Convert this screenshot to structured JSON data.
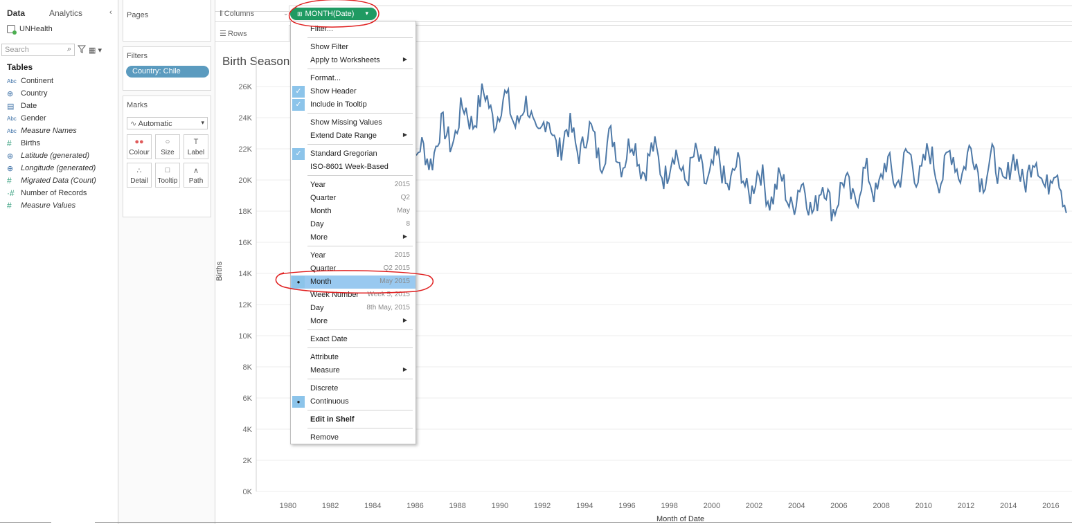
{
  "data_pane": {
    "tab_data": "Data",
    "tab_analytics": "Analytics",
    "datasource": "UNHealth",
    "search_placeholder": "Search",
    "tables_title": "Tables",
    "fields": [
      {
        "type": "Abc",
        "name": "Continent",
        "italic": false
      },
      {
        "type": "globe",
        "name": "Country",
        "italic": false
      },
      {
        "type": "date",
        "name": "Date",
        "italic": false
      },
      {
        "type": "Abc",
        "name": "Gender",
        "italic": false
      },
      {
        "type": "Abc",
        "name": "Measure Names",
        "italic": true
      },
      {
        "type": "#",
        "name": "Births",
        "italic": false
      },
      {
        "type": "globe",
        "name": "Latitude (generated)",
        "italic": true
      },
      {
        "type": "globe",
        "name": "Longitude (generated)",
        "italic": true
      },
      {
        "type": "#",
        "name": "Migrated Data (Count)",
        "italic": true
      },
      {
        "type": "=#",
        "name": "Number of Records",
        "italic": false
      },
      {
        "type": "#",
        "name": "Measure Values",
        "italic": true
      }
    ]
  },
  "cards": {
    "pages_title": "Pages",
    "filters_title": "Filters",
    "filter_pill": "Country: Chile",
    "marks_title": "Marks",
    "mark_type": "Automatic",
    "mark_buttons": [
      {
        "label": "Colour",
        "icon": "colour-icon"
      },
      {
        "label": "Size",
        "icon": "size-icon"
      },
      {
        "label": "Label",
        "icon": "label-icon"
      },
      {
        "label": "Detail",
        "icon": "detail-icon"
      },
      {
        "label": "Tooltip",
        "icon": "tooltip-icon"
      },
      {
        "label": "Path",
        "icon": "path-icon"
      }
    ]
  },
  "shelves": {
    "columns_label": "Columns",
    "rows_label": "Rows",
    "columns_pill": "MONTH(Date)"
  },
  "viz": {
    "title": "Birth Season",
    "ylabel": "Births",
    "xlabel": "Month of Date"
  },
  "context_menu": {
    "items": [
      {
        "label": "Filter...",
        "value": "",
        "check": "",
        "submenu": false,
        "bold": false,
        "highlight": false
      },
      {
        "sep": true
      },
      {
        "label": "Show Filter",
        "value": "",
        "check": "",
        "submenu": false
      },
      {
        "label": "Apply to Worksheets",
        "value": "",
        "check": "",
        "submenu": true
      },
      {
        "sep": true
      },
      {
        "label": "Format...",
        "value": "",
        "check": "",
        "submenu": false
      },
      {
        "label": "Show Header",
        "value": "",
        "check": "tick",
        "submenu": false
      },
      {
        "label": "Include in Tooltip",
        "value": "",
        "check": "tick",
        "submenu": false
      },
      {
        "sep": true
      },
      {
        "label": "Show Missing Values",
        "value": "",
        "check": "",
        "submenu": false
      },
      {
        "label": "Extend Date Range",
        "value": "",
        "check": "",
        "submenu": true
      },
      {
        "sep": true
      },
      {
        "label": "Standard Gregorian",
        "value": "",
        "check": "tick",
        "submenu": false
      },
      {
        "label": "ISO-8601 Week-Based",
        "value": "",
        "check": "",
        "submenu": false
      },
      {
        "sep": true
      },
      {
        "label": "Year",
        "value": "2015",
        "check": "",
        "submenu": false
      },
      {
        "label": "Quarter",
        "value": "Q2",
        "check": "",
        "submenu": false
      },
      {
        "label": "Month",
        "value": "May",
        "check": "",
        "submenu": false
      },
      {
        "label": "Day",
        "value": "8",
        "check": "",
        "submenu": false
      },
      {
        "label": "More",
        "value": "",
        "check": "",
        "submenu": true
      },
      {
        "sep": true
      },
      {
        "label": "Year",
        "value": "2015",
        "check": "",
        "submenu": false
      },
      {
        "label": "Quarter",
        "value": "Q2 2015",
        "check": "",
        "submenu": false
      },
      {
        "label": "Month",
        "value": "May 2015",
        "check": "dot",
        "submenu": false,
        "highlight": true
      },
      {
        "label": "Week Number",
        "value": "Week 5, 2015",
        "check": "",
        "submenu": false
      },
      {
        "label": "Day",
        "value": "8th May, 2015",
        "check": "",
        "submenu": false
      },
      {
        "label": "More",
        "value": "",
        "check": "",
        "submenu": true
      },
      {
        "sep": true
      },
      {
        "label": "Exact Date",
        "value": "",
        "check": "",
        "submenu": false
      },
      {
        "sep": true
      },
      {
        "label": "Attribute",
        "value": "",
        "check": "",
        "submenu": false
      },
      {
        "label": "Measure",
        "value": "",
        "check": "",
        "submenu": true
      },
      {
        "sep": true
      },
      {
        "label": "Discrete",
        "value": "",
        "check": "",
        "submenu": false
      },
      {
        "label": "Continuous",
        "value": "",
        "check": "dot",
        "submenu": false
      },
      {
        "sep": true
      },
      {
        "label": "Edit in Shelf",
        "value": "",
        "check": "",
        "submenu": false,
        "bold": true
      },
      {
        "sep": true
      },
      {
        "label": "Remove",
        "value": "",
        "check": "",
        "submenu": false
      }
    ]
  },
  "colors": {
    "line": "#4e79a7",
    "pill_green": "#1f9a62",
    "pill_blue": "#5b9bbf",
    "annotation_red": "#e02020",
    "menu_highlight": "#99c9f0"
  },
  "chart_data": {
    "type": "line",
    "title": "",
    "xlabel": "Month of Date",
    "ylabel": "Births",
    "x_ticks": [
      "1980",
      "1982",
      "1984",
      "1986",
      "1988",
      "1990",
      "1992",
      "1994",
      "1996",
      "1998",
      "2000",
      "2002",
      "2004",
      "2006",
      "2008",
      "2010",
      "2012",
      "2014",
      "2016"
    ],
    "y_ticks": [
      "0K",
      "2K",
      "4K",
      "6K",
      "8K",
      "10K",
      "12K",
      "14K",
      "16K",
      "18K",
      "20K",
      "22K",
      "24K",
      "26K"
    ],
    "ylim": [
      0,
      26000
    ],
    "xlim": [
      1978.5,
      2017.0
    ],
    "grid": true,
    "series": [
      {
        "values_by_year": [
          {
            "year": 1985.4,
            "value": 22800
          },
          {
            "year": 1986.0,
            "value": 21000
          },
          {
            "year": 1987.0,
            "value": 22300
          },
          {
            "year": 1988.0,
            "value": 23500
          },
          {
            "year": 1989.0,
            "value": 24800
          },
          {
            "year": 1990.0,
            "value": 24600
          },
          {
            "year": 1991.0,
            "value": 24300
          },
          {
            "year": 1992.0,
            "value": 23300
          },
          {
            "year": 1993.0,
            "value": 22600
          },
          {
            "year": 1994.0,
            "value": 22600
          },
          {
            "year": 1995.0,
            "value": 22000
          },
          {
            "year": 1996.0,
            "value": 21800
          },
          {
            "year": 1997.0,
            "value": 21300
          },
          {
            "year": 1998.0,
            "value": 21000
          },
          {
            "year": 1999.0,
            "value": 20800
          },
          {
            "year": 2000.0,
            "value": 20600
          },
          {
            "year": 2001.0,
            "value": 20300
          },
          {
            "year": 2002.0,
            "value": 19800
          },
          {
            "year": 2003.0,
            "value": 19400
          },
          {
            "year": 2004.0,
            "value": 19000
          },
          {
            "year": 2005.0,
            "value": 18800
          },
          {
            "year": 2006.0,
            "value": 19000
          },
          {
            "year": 2007.0,
            "value": 19600
          },
          {
            "year": 2008.0,
            "value": 20100
          },
          {
            "year": 2009.0,
            "value": 20800
          },
          {
            "year": 2010.0,
            "value": 21000
          },
          {
            "year": 2011.0,
            "value": 20800
          },
          {
            "year": 2012.0,
            "value": 21300
          },
          {
            "year": 2013.0,
            "value": 20600
          },
          {
            "year": 2014.0,
            "value": 20500
          },
          {
            "year": 2015.0,
            "value": 20700
          },
          {
            "year": 2016.0,
            "value": 20300
          },
          {
            "year": 2016.8,
            "value": 19000
          }
        ]
      }
    ]
  }
}
